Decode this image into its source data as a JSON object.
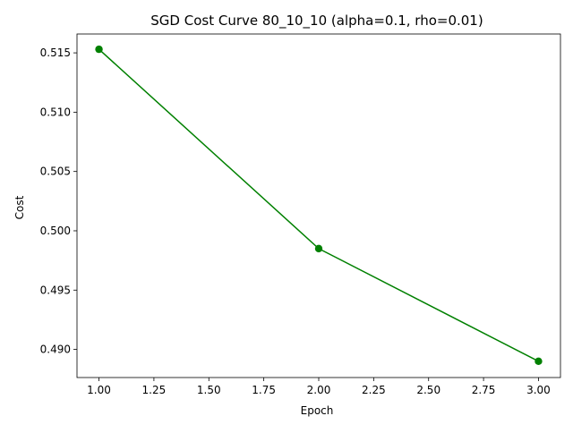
{
  "chart_data": {
    "type": "line",
    "title": "SGD Cost Curve 80_10_10 (alpha=0.1, rho=0.01)",
    "xlabel": "Epoch",
    "ylabel": "Cost",
    "xlim": [
      0.9,
      3.1
    ],
    "ylim": [
      0.48763,
      0.51659
    ],
    "x_ticks": [
      1.0,
      1.25,
      1.5,
      1.75,
      2.0,
      2.25,
      2.5,
      2.75,
      3.0
    ],
    "x_tick_labels": [
      "1.00",
      "1.25",
      "1.50",
      "1.75",
      "2.00",
      "2.25",
      "2.50",
      "2.75",
      "3.00"
    ],
    "y_ticks": [
      0.49,
      0.495,
      0.5,
      0.505,
      0.51,
      0.515
    ],
    "y_tick_labels": [
      "0.490",
      "0.495",
      "0.500",
      "0.505",
      "0.510",
      "0.515"
    ],
    "grid": false,
    "series": [
      {
        "color": "#008000",
        "marker": "circle",
        "x": [
          1,
          2,
          3
        ],
        "y": [
          0.5153,
          0.4985,
          0.489
        ]
      }
    ]
  }
}
